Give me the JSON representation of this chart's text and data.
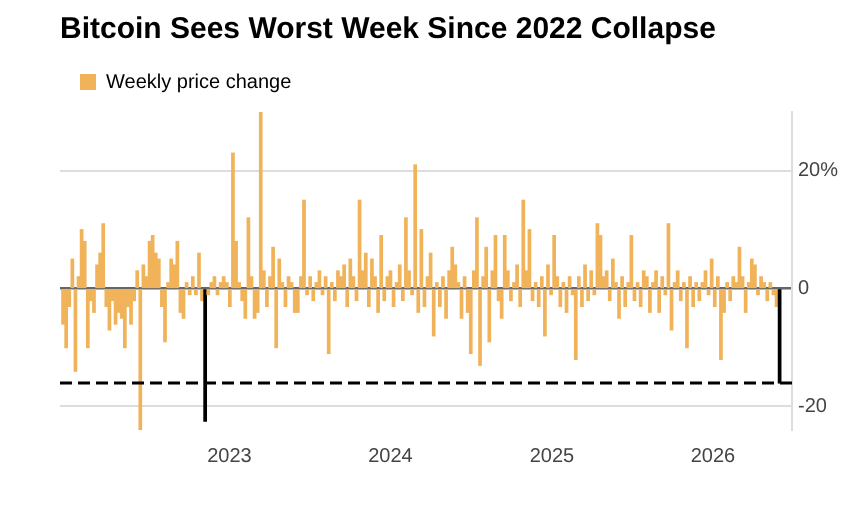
{
  "chart_data": {
    "type": "bar",
    "title": "Bitcoin Sees Worst Week Since 2022 Collapse",
    "x": [
      "2021-12-20",
      "2021-12-27",
      "2022-01-03",
      "2022-01-10",
      "2022-01-17",
      "2022-01-24",
      "2022-01-31",
      "2022-02-07",
      "2022-02-14",
      "2022-02-21",
      "2022-02-28",
      "2022-03-07",
      "2022-03-14",
      "2022-03-21",
      "2022-03-28",
      "2022-04-04",
      "2022-04-11",
      "2022-04-18",
      "2022-04-25",
      "2022-05-02",
      "2022-05-09",
      "2022-05-16",
      "2022-05-23",
      "2022-05-30",
      "2022-06-06",
      "2022-06-13",
      "2022-06-20",
      "2022-06-27",
      "2022-07-04",
      "2022-07-11",
      "2022-07-18",
      "2022-07-25",
      "2022-08-01",
      "2022-08-08",
      "2022-08-15",
      "2022-08-22",
      "2022-08-29",
      "2022-09-05",
      "2022-09-12",
      "2022-09-19",
      "2022-09-26",
      "2022-10-03",
      "2022-10-10",
      "2022-10-17",
      "2022-10-24",
      "2022-10-31",
      "2022-11-07",
      "2022-11-14",
      "2022-11-21",
      "2022-11-28",
      "2022-12-05",
      "2022-12-12",
      "2022-12-19",
      "2022-12-26",
      "2023-01-02",
      "2023-01-09",
      "2023-01-16",
      "2023-01-23",
      "2023-01-30",
      "2023-02-06",
      "2023-02-13",
      "2023-02-20",
      "2023-02-27",
      "2023-03-06",
      "2023-03-13",
      "2023-03-20",
      "2023-03-27",
      "2023-04-03",
      "2023-04-10",
      "2023-04-17",
      "2023-04-24",
      "2023-05-01",
      "2023-05-08",
      "2023-05-15",
      "2023-05-22",
      "2023-05-29",
      "2023-06-05",
      "2023-06-12",
      "2023-06-19",
      "2023-06-26",
      "2023-07-03",
      "2023-07-10",
      "2023-07-17",
      "2023-07-24",
      "2023-07-31",
      "2023-08-07",
      "2023-08-14",
      "2023-08-21",
      "2023-08-28",
      "2023-09-04",
      "2023-09-11",
      "2023-09-18",
      "2023-09-25",
      "2023-10-02",
      "2023-10-09",
      "2023-10-16",
      "2023-10-23",
      "2023-10-30",
      "2023-11-06",
      "2023-11-13",
      "2023-11-20",
      "2023-11-27",
      "2023-12-04",
      "2023-12-11",
      "2023-12-18",
      "2023-12-25",
      "2024-01-01",
      "2024-01-08",
      "2024-01-15",
      "2024-01-22",
      "2024-01-29",
      "2024-02-05",
      "2024-02-12",
      "2024-02-19",
      "2024-02-26",
      "2024-03-04",
      "2024-03-11",
      "2024-03-18",
      "2024-03-25",
      "2024-04-01",
      "2024-04-08",
      "2024-04-15",
      "2024-04-22",
      "2024-04-29",
      "2024-05-06",
      "2024-05-13",
      "2024-05-20",
      "2024-05-27",
      "2024-06-03",
      "2024-06-10",
      "2024-06-17",
      "2024-06-24",
      "2024-07-01",
      "2024-07-08",
      "2024-07-15",
      "2024-07-22",
      "2024-07-29",
      "2024-08-05",
      "2024-08-12",
      "2024-08-19",
      "2024-08-26",
      "2024-09-02",
      "2024-09-09",
      "2024-09-16",
      "2024-09-23",
      "2024-09-30",
      "2024-10-07",
      "2024-10-14",
      "2024-10-21",
      "2024-10-28",
      "2024-11-04",
      "2024-11-11",
      "2024-11-18",
      "2024-11-25",
      "2024-12-02",
      "2024-12-09",
      "2024-12-16",
      "2024-12-23",
      "2024-12-30",
      "2025-01-06",
      "2025-01-13",
      "2025-01-20",
      "2025-01-27",
      "2025-02-03",
      "2025-02-10",
      "2025-02-17",
      "2025-02-24",
      "2025-03-03",
      "2025-03-10",
      "2025-03-17",
      "2025-03-24",
      "2025-03-31",
      "2025-04-07",
      "2025-04-14",
      "2025-04-21",
      "2025-04-28",
      "2025-05-05",
      "2025-05-12",
      "2025-05-19",
      "2025-05-26",
      "2025-06-02",
      "2025-06-09",
      "2025-06-16",
      "2025-06-23",
      "2025-06-30",
      "2025-07-07",
      "2025-07-14",
      "2025-07-21",
      "2025-07-28",
      "2025-08-04",
      "2025-08-11",
      "2025-08-18",
      "2025-08-25",
      "2025-09-01",
      "2025-09-08",
      "2025-09-15",
      "2025-09-22",
      "2025-09-29",
      "2025-10-06",
      "2025-10-13",
      "2025-10-20",
      "2025-10-27",
      "2025-11-03",
      "2025-11-10",
      "2025-11-17",
      "2025-11-24",
      "2025-12-01",
      "2025-12-08",
      "2025-12-15",
      "2025-12-22",
      "2025-12-29",
      "2026-01-05",
      "2026-01-12",
      "2026-01-19",
      "2026-01-26",
      "2026-02-02",
      "2026-02-09",
      "2026-02-16",
      "2026-02-23",
      "2026-03-02",
      "2026-03-09",
      "2026-03-16",
      "2026-03-23",
      "2026-03-30",
      "2026-04-06",
      "2026-04-13",
      "2026-04-20",
      "2026-04-27",
      "2026-05-04",
      "2026-05-11",
      "2026-05-18",
      "2026-05-25",
      "2026-06-01"
    ],
    "series": [
      {
        "name": "Weekly price change",
        "color": "#f0b35a",
        "values": [
          -6,
          -10,
          -3,
          5,
          -14,
          2,
          10,
          8,
          -10,
          -2,
          -4,
          4,
          6,
          11,
          -3,
          -7,
          -2,
          -6,
          -4,
          -5,
          -10,
          -3,
          -6,
          -2,
          3,
          -24,
          4,
          2,
          8,
          9,
          6,
          5,
          -3,
          -9,
          1,
          5,
          4,
          8,
          -4,
          -5,
          1,
          -1,
          2,
          -1,
          6,
          -2,
          -22.5,
          -1,
          1,
          2,
          -1,
          1,
          2,
          1,
          -3,
          23,
          8,
          1,
          -2,
          -5,
          12,
          2,
          -5,
          -4,
          30,
          3,
          -3,
          2,
          7,
          -10,
          5,
          1,
          -3,
          2,
          1,
          -4,
          -4,
          2,
          15,
          -1,
          2,
          -2,
          1,
          3,
          -1,
          2,
          -11,
          1,
          -2,
          3,
          2,
          4,
          -3,
          5,
          2,
          -2,
          15,
          3,
          6,
          -3,
          5,
          2,
          -4,
          9,
          -2,
          2,
          3,
          -3,
          1,
          4,
          -2,
          12,
          3,
          -1,
          21,
          -4,
          10,
          -3,
          2,
          6,
          -8,
          1,
          -3,
          2,
          -5,
          3,
          7,
          4,
          1,
          -5,
          2,
          -4,
          -11,
          3,
          12,
          -13,
          2,
          7,
          -9,
          3,
          9,
          -2,
          -5,
          9,
          3,
          -2,
          1,
          4,
          -3,
          15,
          3,
          10,
          -2,
          1,
          -3,
          2,
          -8,
          4,
          -1,
          9,
          2,
          -3,
          1,
          -4,
          2,
          -1,
          -12,
          2,
          -3,
          4,
          -2,
          3,
          -1,
          11,
          9,
          2,
          3,
          -2,
          5,
          1,
          -5,
          2,
          -3,
          1,
          9,
          -2,
          1,
          -3,
          3,
          2,
          -4,
          1,
          3,
          -4,
          2,
          -1,
          11,
          -7,
          1,
          3,
          -2,
          1,
          -10,
          2,
          -3,
          1,
          -2,
          1,
          3,
          -1,
          5,
          -3,
          2,
          -12,
          -4,
          1,
          -2,
          2,
          1,
          7,
          2,
          -4,
          1,
          5,
          4,
          -1,
          2,
          1,
          -2,
          1,
          -1,
          -3,
          -16
        ],
        "colors": [
          "#f0b35a",
          "#f0b35a",
          "#f0b35a",
          "#f0b35a",
          "#f0b35a",
          "#f0b35a",
          "#f0b35a",
          "#f0b35a",
          "#f0b35a",
          "#f0b35a",
          "#f0b35a",
          "#f0b35a",
          "#f0b35a",
          "#f0b35a",
          "#f0b35a",
          "#f0b35a",
          "#f0b35a",
          "#f0b35a",
          "#f0b35a",
          "#f0b35a",
          "#f0b35a",
          "#f0b35a",
          "#f0b35a",
          "#f0b35a",
          "#f0b35a",
          "#f0b35a",
          "#f0b35a",
          "#f0b35a",
          "#f0b35a",
          "#f0b35a",
          "#f0b35a",
          "#f0b35a",
          "#f0b35a",
          "#f0b35a",
          "#f0b35a",
          "#f0b35a",
          "#f0b35a",
          "#f0b35a",
          "#f0b35a",
          "#f0b35a",
          "#f0b35a",
          "#f0b35a",
          "#f0b35a",
          "#f0b35a",
          "#f0b35a",
          "#f0b35a",
          "#000000",
          "#f0b35a",
          "#f0b35a",
          "#f0b35a",
          "#f0b35a",
          "#f0b35a",
          "#f0b35a",
          "#f0b35a",
          "#f0b35a",
          "#f0b35a",
          "#f0b35a",
          "#f0b35a",
          "#f0b35a",
          "#f0b35a",
          "#f0b35a",
          "#f0b35a",
          "#f0b35a",
          "#f0b35a",
          "#f0b35a",
          "#f0b35a",
          "#f0b35a",
          "#f0b35a",
          "#f0b35a",
          "#f0b35a",
          "#f0b35a",
          "#f0b35a",
          "#f0b35a",
          "#f0b35a",
          "#f0b35a",
          "#f0b35a",
          "#f0b35a",
          "#f0b35a",
          "#f0b35a",
          "#f0b35a",
          "#f0b35a",
          "#f0b35a",
          "#f0b35a",
          "#f0b35a",
          "#f0b35a",
          "#f0b35a",
          "#f0b35a",
          "#f0b35a",
          "#f0b35a",
          "#f0b35a",
          "#f0b35a",
          "#f0b35a",
          "#f0b35a",
          "#f0b35a",
          "#f0b35a",
          "#f0b35a",
          "#f0b35a",
          "#f0b35a",
          "#f0b35a",
          "#f0b35a",
          "#f0b35a",
          "#f0b35a",
          "#f0b35a",
          "#f0b35a",
          "#f0b35a",
          "#f0b35a",
          "#f0b35a",
          "#f0b35a",
          "#f0b35a",
          "#f0b35a",
          "#f0b35a",
          "#f0b35a",
          "#f0b35a",
          "#f0b35a",
          "#f0b35a",
          "#f0b35a",
          "#f0b35a",
          "#f0b35a",
          "#f0b35a",
          "#f0b35a",
          "#f0b35a",
          "#f0b35a",
          "#f0b35a",
          "#f0b35a",
          "#f0b35a",
          "#f0b35a",
          "#f0b35a",
          "#f0b35a",
          "#f0b35a",
          "#f0b35a",
          "#f0b35a",
          "#f0b35a",
          "#f0b35a",
          "#f0b35a",
          "#f0b35a",
          "#f0b35a",
          "#f0b35a",
          "#f0b35a",
          "#f0b35a",
          "#f0b35a",
          "#f0b35a",
          "#f0b35a",
          "#f0b35a",
          "#f0b35a",
          "#f0b35a",
          "#f0b35a",
          "#f0b35a",
          "#f0b35a",
          "#f0b35a",
          "#f0b35a",
          "#f0b35a",
          "#f0b35a",
          "#f0b35a",
          "#f0b35a",
          "#f0b35a",
          "#f0b35a",
          "#f0b35a",
          "#f0b35a",
          "#f0b35a",
          "#f0b35a",
          "#f0b35a",
          "#f0b35a",
          "#f0b35a",
          "#f0b35a",
          "#f0b35a",
          "#f0b35a",
          "#f0b35a",
          "#f0b35a",
          "#f0b35a",
          "#f0b35a",
          "#f0b35a",
          "#f0b35a",
          "#f0b35a",
          "#f0b35a",
          "#f0b35a",
          "#f0b35a",
          "#f0b35a",
          "#f0b35a",
          "#f0b35a",
          "#f0b35a",
          "#f0b35a",
          "#f0b35a",
          "#f0b35a",
          "#f0b35a",
          "#f0b35a",
          "#f0b35a",
          "#f0b35a",
          "#f0b35a",
          "#f0b35a",
          "#f0b35a",
          "#f0b35a",
          "#f0b35a",
          "#f0b35a",
          "#f0b35a",
          "#f0b35a",
          "#f0b35a",
          "#f0b35a",
          "#f0b35a",
          "#f0b35a",
          "#f0b35a",
          "#f0b35a",
          "#f0b35a",
          "#f0b35a",
          "#f0b35a",
          "#f0b35a",
          "#f0b35a",
          "#f0b35a",
          "#f0b35a",
          "#f0b35a",
          "#f0b35a",
          "#f0b35a",
          "#f0b35a",
          "#f0b35a",
          "#f0b35a",
          "#f0b35a",
          "#f0b35a",
          "#f0b35a",
          "#f0b35a",
          "#f0b35a",
          "#f0b35a",
          "#f0b35a",
          "#f0b35a",
          "#f0b35a",
          "#f0b35a",
          "#f0b35a",
          "#f0b35a",
          "#f0b35a",
          "#f0b35a",
          "#f0b35a",
          "#f0b35a",
          "#f0b35a",
          "#f0b35a",
          "#000000"
        ]
      }
    ],
    "xlim": [
      "2021-12-13",
      "2026-06-29"
    ],
    "xticks": [
      "2023",
      "2024",
      "2025",
      "2026"
    ],
    "ylim": [
      -24,
      30
    ],
    "yticks": [
      {
        "value": 20,
        "label": "20%"
      },
      0,
      -20
    ],
    "ref_lines": [
      {
        "axis": "y",
        "value": -16,
        "color": "#000000",
        "line_style": "dashed"
      }
    ],
    "grid": "y",
    "legend": "top left"
  }
}
